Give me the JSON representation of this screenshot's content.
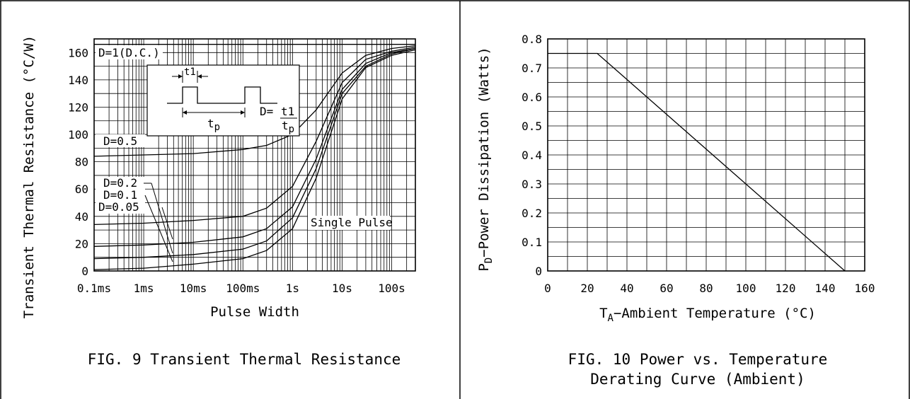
{
  "chart_data": [
    {
      "type": "line",
      "title": "FIG. 9 Transient Thermal Resistance",
      "xlabel": "Pulse Width",
      "ylabel": "Transient Thermal Resistance (°C/W)",
      "x_scale": "log",
      "xlim_seconds": [
        0.0001,
        300
      ],
      "ylim": [
        0,
        170
      ],
      "x_tick_values_seconds": [
        0.0001,
        0.001,
        0.01,
        0.1,
        1,
        10,
        100
      ],
      "x_tick_labels": [
        "0.1ms",
        "1ms",
        "10ms",
        "100ms",
        "1s",
        "10s",
        "100s"
      ],
      "y_ticks": [
        0,
        20,
        40,
        60,
        80,
        100,
        120,
        140,
        160
      ],
      "grid": true,
      "series": [
        {
          "name": "D=1(D.C.)",
          "x": [
            0.0001,
            300
          ],
          "y": [
            166,
            166
          ]
        },
        {
          "name": "D=0.5",
          "x": [
            0.0001,
            0.001,
            0.01,
            0.1,
            0.3,
            1,
            3,
            10,
            30,
            100,
            300
          ],
          "y": [
            84,
            85,
            86,
            89,
            92,
            100,
            118,
            145,
            158,
            163,
            165
          ]
        },
        {
          "name": "D=0.2",
          "x": [
            0.0001,
            0.001,
            0.01,
            0.1,
            0.3,
            1,
            3,
            10,
            30,
            100,
            300
          ],
          "y": [
            34,
            35,
            37,
            40,
            46,
            62,
            95,
            138,
            155,
            161,
            164
          ]
        },
        {
          "name": "D=0.1",
          "x": [
            0.0001,
            0.001,
            0.01,
            0.1,
            0.3,
            1,
            3,
            10,
            30,
            100,
            300
          ],
          "y": [
            18,
            19,
            21,
            25,
            31,
            47,
            82,
            133,
            152,
            160,
            163
          ]
        },
        {
          "name": "D=0.05",
          "x": [
            0.0001,
            0.001,
            0.01,
            0.1,
            0.3,
            1,
            3,
            10,
            30,
            100,
            300
          ],
          "y": [
            9,
            10,
            12,
            16,
            22,
            39,
            75,
            130,
            150,
            159,
            163
          ]
        },
        {
          "name": "Single Pulse",
          "x": [
            0.0001,
            0.001,
            0.01,
            0.1,
            0.3,
            1,
            3,
            10,
            30,
            100,
            300
          ],
          "y": [
            1,
            2,
            5,
            9,
            15,
            31,
            68,
            126,
            149,
            158,
            162
          ]
        }
      ],
      "inset": {
        "t1_label": "t1",
        "tp_label_main": "t",
        "tp_label_sub": "p",
        "formula_lhs": "D=",
        "formula_num": "t1",
        "formula_den_main": "t",
        "formula_den_sub": "p"
      }
    },
    {
      "type": "line",
      "title_line1": "FIG. 10 Power vs. Temperature",
      "title_line2": "Derating Curve (Ambient)",
      "xlabel_main": "T",
      "xlabel_sub": "A",
      "xlabel_rest": "−Ambient Temperature (°C)",
      "ylabel_main": "P",
      "ylabel_sub": "D",
      "ylabel_rest": "−Power Dissipation (Watts)",
      "xlim": [
        0,
        160
      ],
      "ylim": [
        0,
        0.8
      ],
      "x_ticks": [
        0,
        20,
        40,
        60,
        80,
        100,
        120,
        140,
        160
      ],
      "y_ticks": [
        0,
        0.1,
        0.2,
        0.3,
        0.4,
        0.5,
        0.6,
        0.7,
        0.8
      ],
      "y_tick_labels": [
        "0",
        "0.1",
        "0.2",
        "0.3",
        "0.4",
        "0.5",
        "0.6",
        "0.7",
        "0.8"
      ],
      "grid": true,
      "series": [
        {
          "x": [
            0,
            25,
            150
          ],
          "y": [
            0.75,
            0.75,
            0
          ]
        }
      ]
    }
  ]
}
